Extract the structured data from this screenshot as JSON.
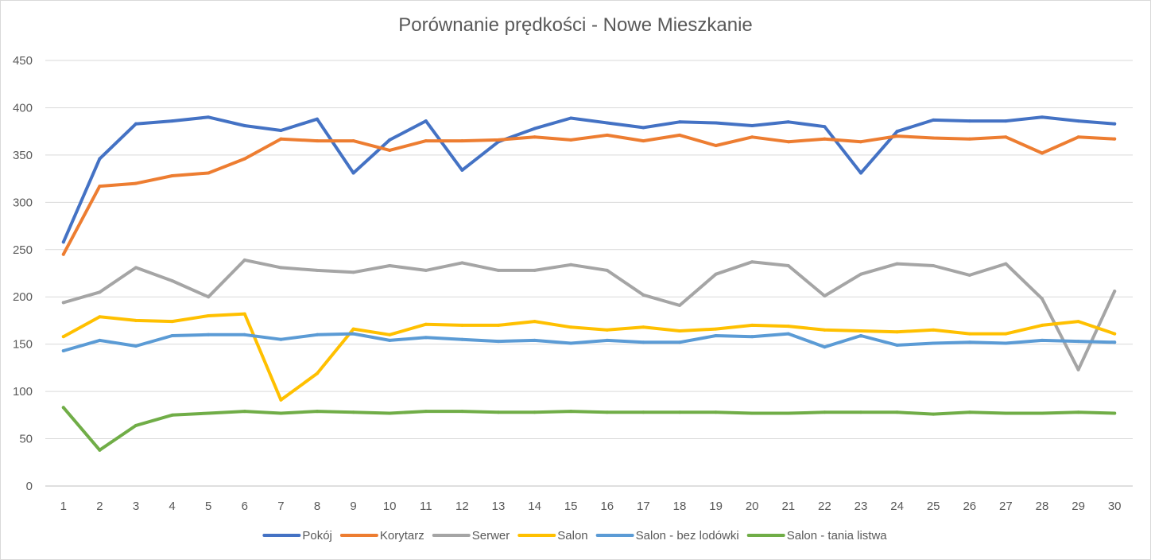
{
  "chart_data": {
    "type": "line",
    "title": "Porównanie prędkości - Nowe Mieszkanie",
    "xlabel": "",
    "ylabel": "",
    "ylim": [
      0,
      450
    ],
    "yticks": [
      "0",
      "50",
      "100",
      "150",
      "200",
      "250",
      "300",
      "350",
      "400",
      "450"
    ],
    "x": [
      "1",
      "2",
      "3",
      "4",
      "5",
      "6",
      "7",
      "8",
      "9",
      "10",
      "11",
      "12",
      "13",
      "14",
      "15",
      "16",
      "17",
      "18",
      "19",
      "20",
      "21",
      "22",
      "23",
      "24",
      "25",
      "26",
      "27",
      "28",
      "29",
      "30"
    ],
    "grid": true,
    "legend_position": "bottom",
    "series": [
      {
        "name": "Pokój",
        "color": "#4472C4",
        "values": [
          258,
          346,
          383,
          386,
          390,
          381,
          376,
          388,
          331,
          366,
          386,
          334,
          364,
          378,
          389,
          384,
          379,
          385,
          384,
          381,
          385,
          380,
          331,
          375,
          387,
          386,
          386,
          390,
          386,
          383
        ]
      },
      {
        "name": "Korytarz",
        "color": "#ED7D31",
        "values": [
          245,
          317,
          320,
          328,
          331,
          346,
          367,
          365,
          365,
          355,
          365,
          365,
          366,
          369,
          366,
          371,
          365,
          371,
          360,
          369,
          364,
          367,
          364,
          370,
          368,
          367,
          369,
          352,
          369,
          367
        ]
      },
      {
        "name": "Serwer",
        "color": "#A5A5A5",
        "values": [
          194,
          205,
          231,
          217,
          200,
          239,
          231,
          228,
          226,
          233,
          228,
          236,
          228,
          228,
          234,
          228,
          202,
          191,
          224,
          237,
          233,
          201,
          224,
          235,
          233,
          223,
          235,
          198,
          123,
          206
        ]
      },
      {
        "name": "Salon",
        "color": "#FFC000",
        "values": [
          158,
          179,
          175,
          174,
          180,
          182,
          91,
          119,
          166,
          160,
          171,
          170,
          170,
          174,
          168,
          165,
          168,
          164,
          166,
          170,
          169,
          165,
          164,
          163,
          165,
          161,
          161,
          170,
          174,
          161
        ]
      },
      {
        "name": "Salon - bez lodówki",
        "color": "#5B9BD5",
        "values": [
          143,
          154,
          148,
          159,
          160,
          160,
          155,
          160,
          161,
          154,
          157,
          155,
          153,
          154,
          151,
          154,
          152,
          152,
          159,
          158,
          161,
          147,
          159,
          149,
          151,
          152,
          151,
          154,
          153,
          152
        ]
      },
      {
        "name": "Salon - tania listwa",
        "color": "#70AD47",
        "values": [
          83,
          38,
          64,
          75,
          77,
          79,
          77,
          79,
          78,
          77,
          79,
          79,
          78,
          78,
          79,
          78,
          78,
          78,
          78,
          77,
          77,
          78,
          78,
          78,
          76,
          78,
          77,
          77,
          78,
          77
        ]
      }
    ]
  }
}
